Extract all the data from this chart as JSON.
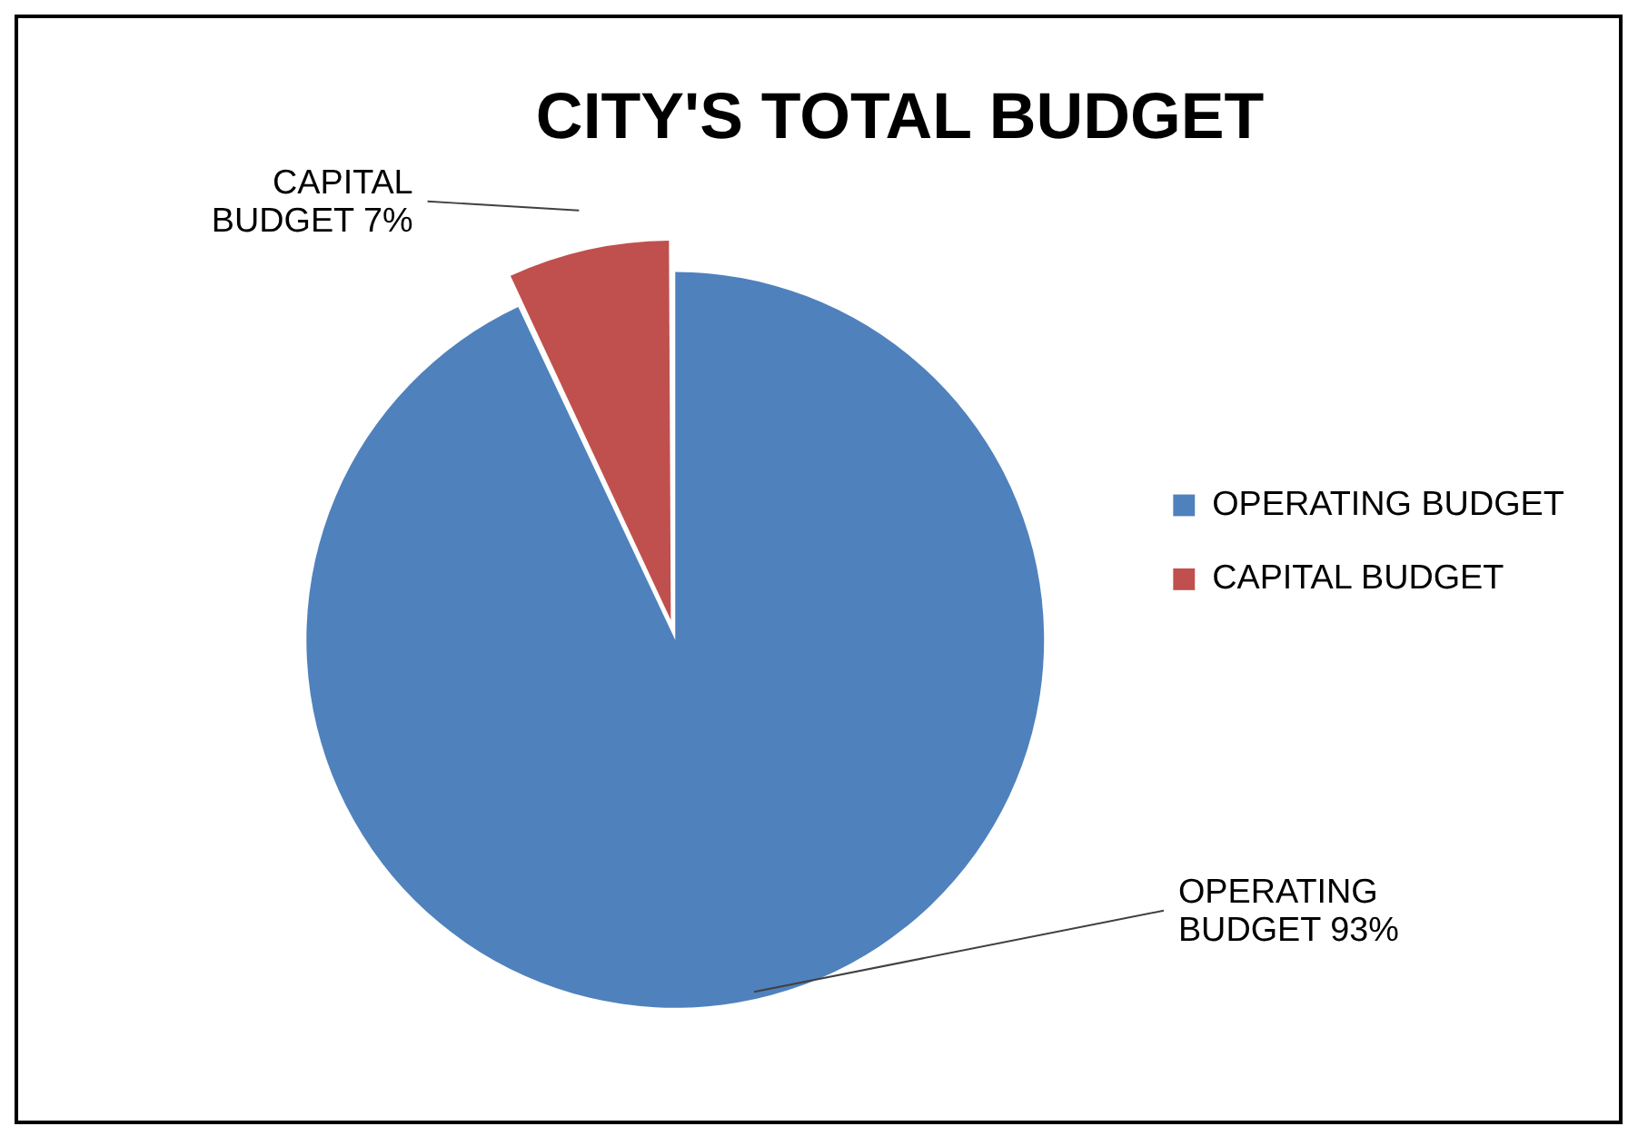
{
  "chart_data": {
    "type": "pie",
    "title": "CITY'S TOTAL BUDGET",
    "categories": [
      "OPERATING BUDGET",
      "CAPITAL BUDGET"
    ],
    "values": [
      93,
      7
    ],
    "colors": [
      "#4f81bd",
      "#c0504d"
    ],
    "value_labels": [
      "93%",
      "7%"
    ],
    "legend": "right"
  }
}
